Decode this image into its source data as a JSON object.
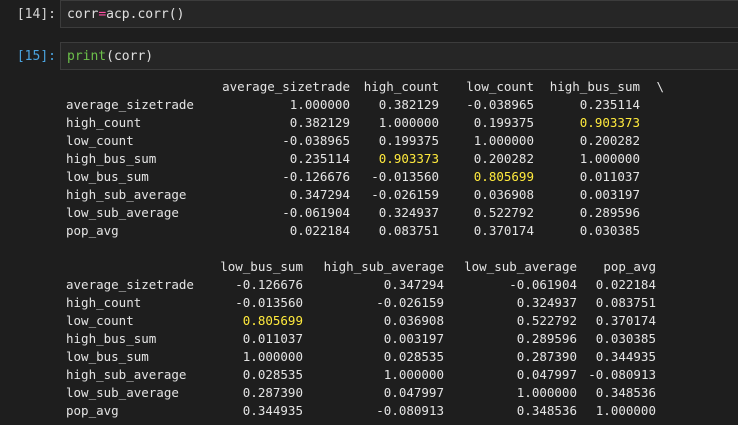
{
  "cells": [
    {
      "prompt": "[14]:",
      "code": {
        "var": "corr",
        "op": "=",
        "rest": "acp.corr()"
      }
    },
    {
      "prompt": "[15]:",
      "code": {
        "fn": "print",
        "args": "(corr)"
      }
    }
  ],
  "output": {
    "block1": {
      "columns": [
        "average_sizetrade",
        "high_count",
        "low_count",
        "high_bus_sum",
        "\\"
      ],
      "rows": [
        {
          "label": "average_sizetrade",
          "values": [
            "1.000000",
            "0.382129",
            "-0.038965",
            "0.235114"
          ]
        },
        {
          "label": "high_count",
          "values": [
            "0.382129",
            "1.000000",
            "0.199375",
            "0.903373"
          ]
        },
        {
          "label": "low_count",
          "values": [
            "-0.038965",
            "0.199375",
            "1.000000",
            "0.200282"
          ]
        },
        {
          "label": "high_bus_sum",
          "values": [
            "0.235114",
            "0.903373",
            "0.200282",
            "1.000000"
          ]
        },
        {
          "label": "low_bus_sum",
          "values": [
            "-0.126676",
            "-0.013560",
            "0.805699",
            "0.011037"
          ]
        },
        {
          "label": "high_sub_average",
          "values": [
            "0.347294",
            "-0.026159",
            "0.036908",
            "0.003197"
          ]
        },
        {
          "label": "low_sub_average",
          "values": [
            "-0.061904",
            "0.324937",
            "0.522792",
            "0.289596"
          ]
        },
        {
          "label": "pop_avg",
          "values": [
            "0.022184",
            "0.083751",
            "0.370174",
            "0.030385"
          ]
        }
      ]
    },
    "block2": {
      "columns": [
        "low_bus_sum",
        "high_sub_average",
        "low_sub_average",
        "pop_avg"
      ],
      "rows": [
        {
          "label": "average_sizetrade",
          "values": [
            "-0.126676",
            "0.347294",
            "-0.061904",
            "0.022184"
          ]
        },
        {
          "label": "high_count",
          "values": [
            "-0.013560",
            "-0.026159",
            "0.324937",
            "0.083751"
          ]
        },
        {
          "label": "low_count",
          "values": [
            "0.805699",
            "0.036908",
            "0.522792",
            "0.370174"
          ]
        },
        {
          "label": "high_bus_sum",
          "values": [
            "0.011037",
            "0.003197",
            "0.289596",
            "0.030385"
          ]
        },
        {
          "label": "low_bus_sum",
          "values": [
            "1.000000",
            "0.028535",
            "0.287390",
            "0.344935"
          ]
        },
        {
          "label": "high_sub_average",
          "values": [
            "0.028535",
            "1.000000",
            "0.047997",
            "-0.080913"
          ]
        },
        {
          "label": "low_sub_average",
          "values": [
            "0.287390",
            "0.047997",
            "1.000000",
            "0.348536"
          ]
        },
        {
          "label": "pop_avg",
          "values": [
            "0.344935",
            "-0.080913",
            "0.348536",
            "1.000000"
          ]
        }
      ]
    },
    "highlight_color": "#ffea3d"
  }
}
